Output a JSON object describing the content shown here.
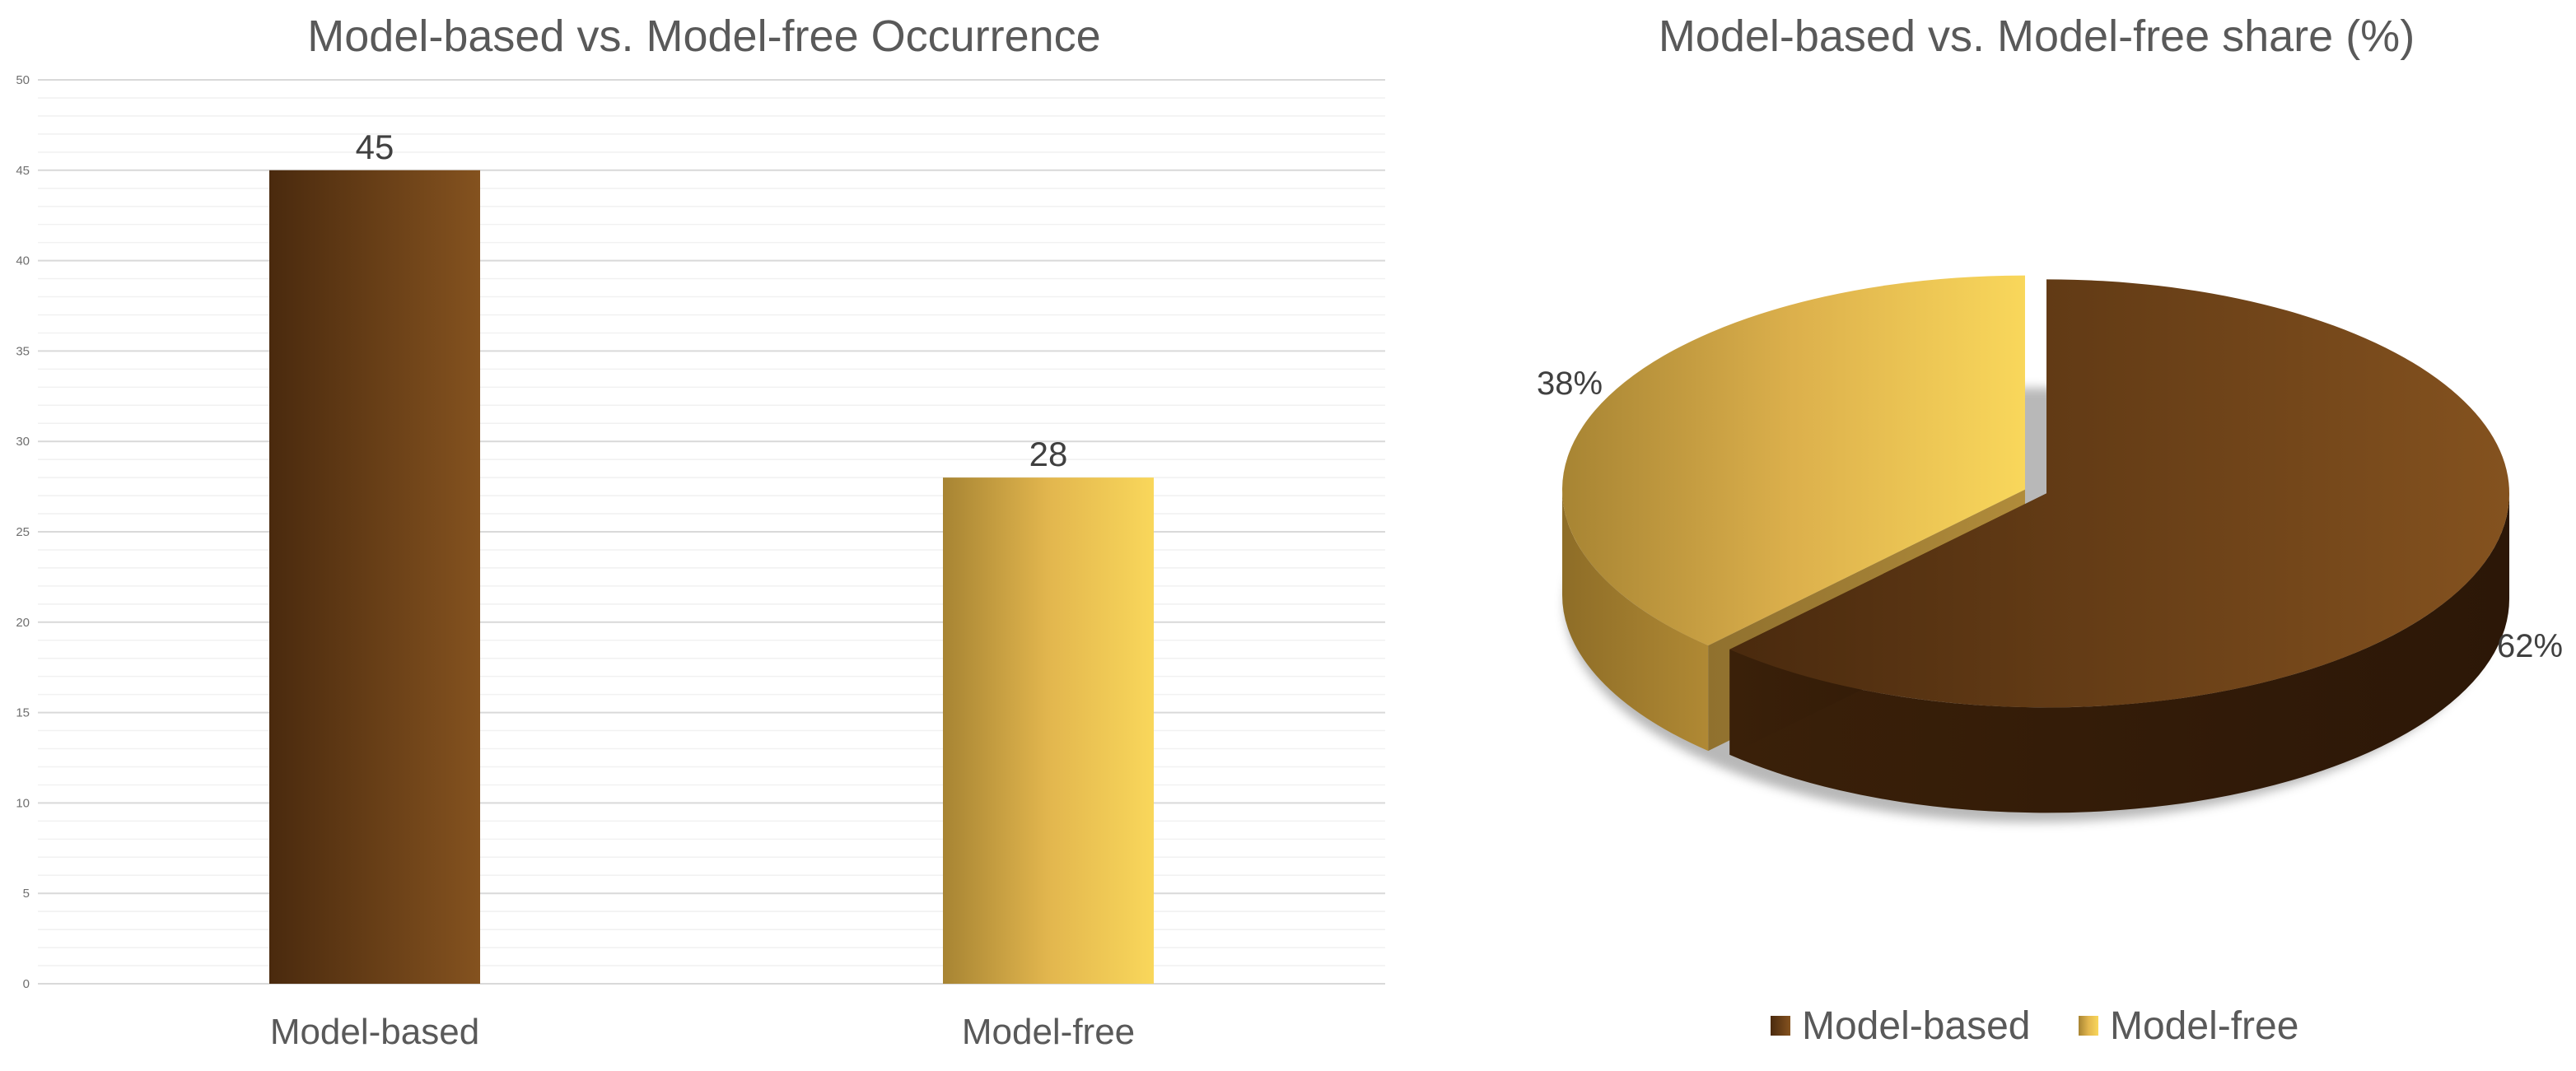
{
  "colors": {
    "model_based": "#7b4a1e",
    "model_based_dark": "#4a2a0e",
    "model_free": "#f6d25a",
    "model_free_dark": "#a78433"
  },
  "chart_data": [
    {
      "type": "bar",
      "title": "Model-based vs. Model-free Occurrence",
      "categories": [
        "Model-based",
        "Model-free"
      ],
      "values": [
        45,
        28
      ],
      "ylim": [
        0,
        50
      ],
      "ytick_step": 5,
      "yticks": [
        "0",
        "5",
        "10",
        "15",
        "20",
        "25",
        "30",
        "35",
        "40",
        "45",
        "50"
      ],
      "data_labels": [
        "45",
        "28"
      ],
      "grid": true,
      "legend": "none"
    },
    {
      "type": "pie",
      "title": "Model-based vs. Model-free share (%)",
      "labels": [
        "Model-based",
        "Model-free"
      ],
      "values": [
        62,
        38
      ],
      "data_labels": [
        "62%",
        "38%"
      ],
      "style": "3d-exploded",
      "legend": "bottom"
    }
  ]
}
